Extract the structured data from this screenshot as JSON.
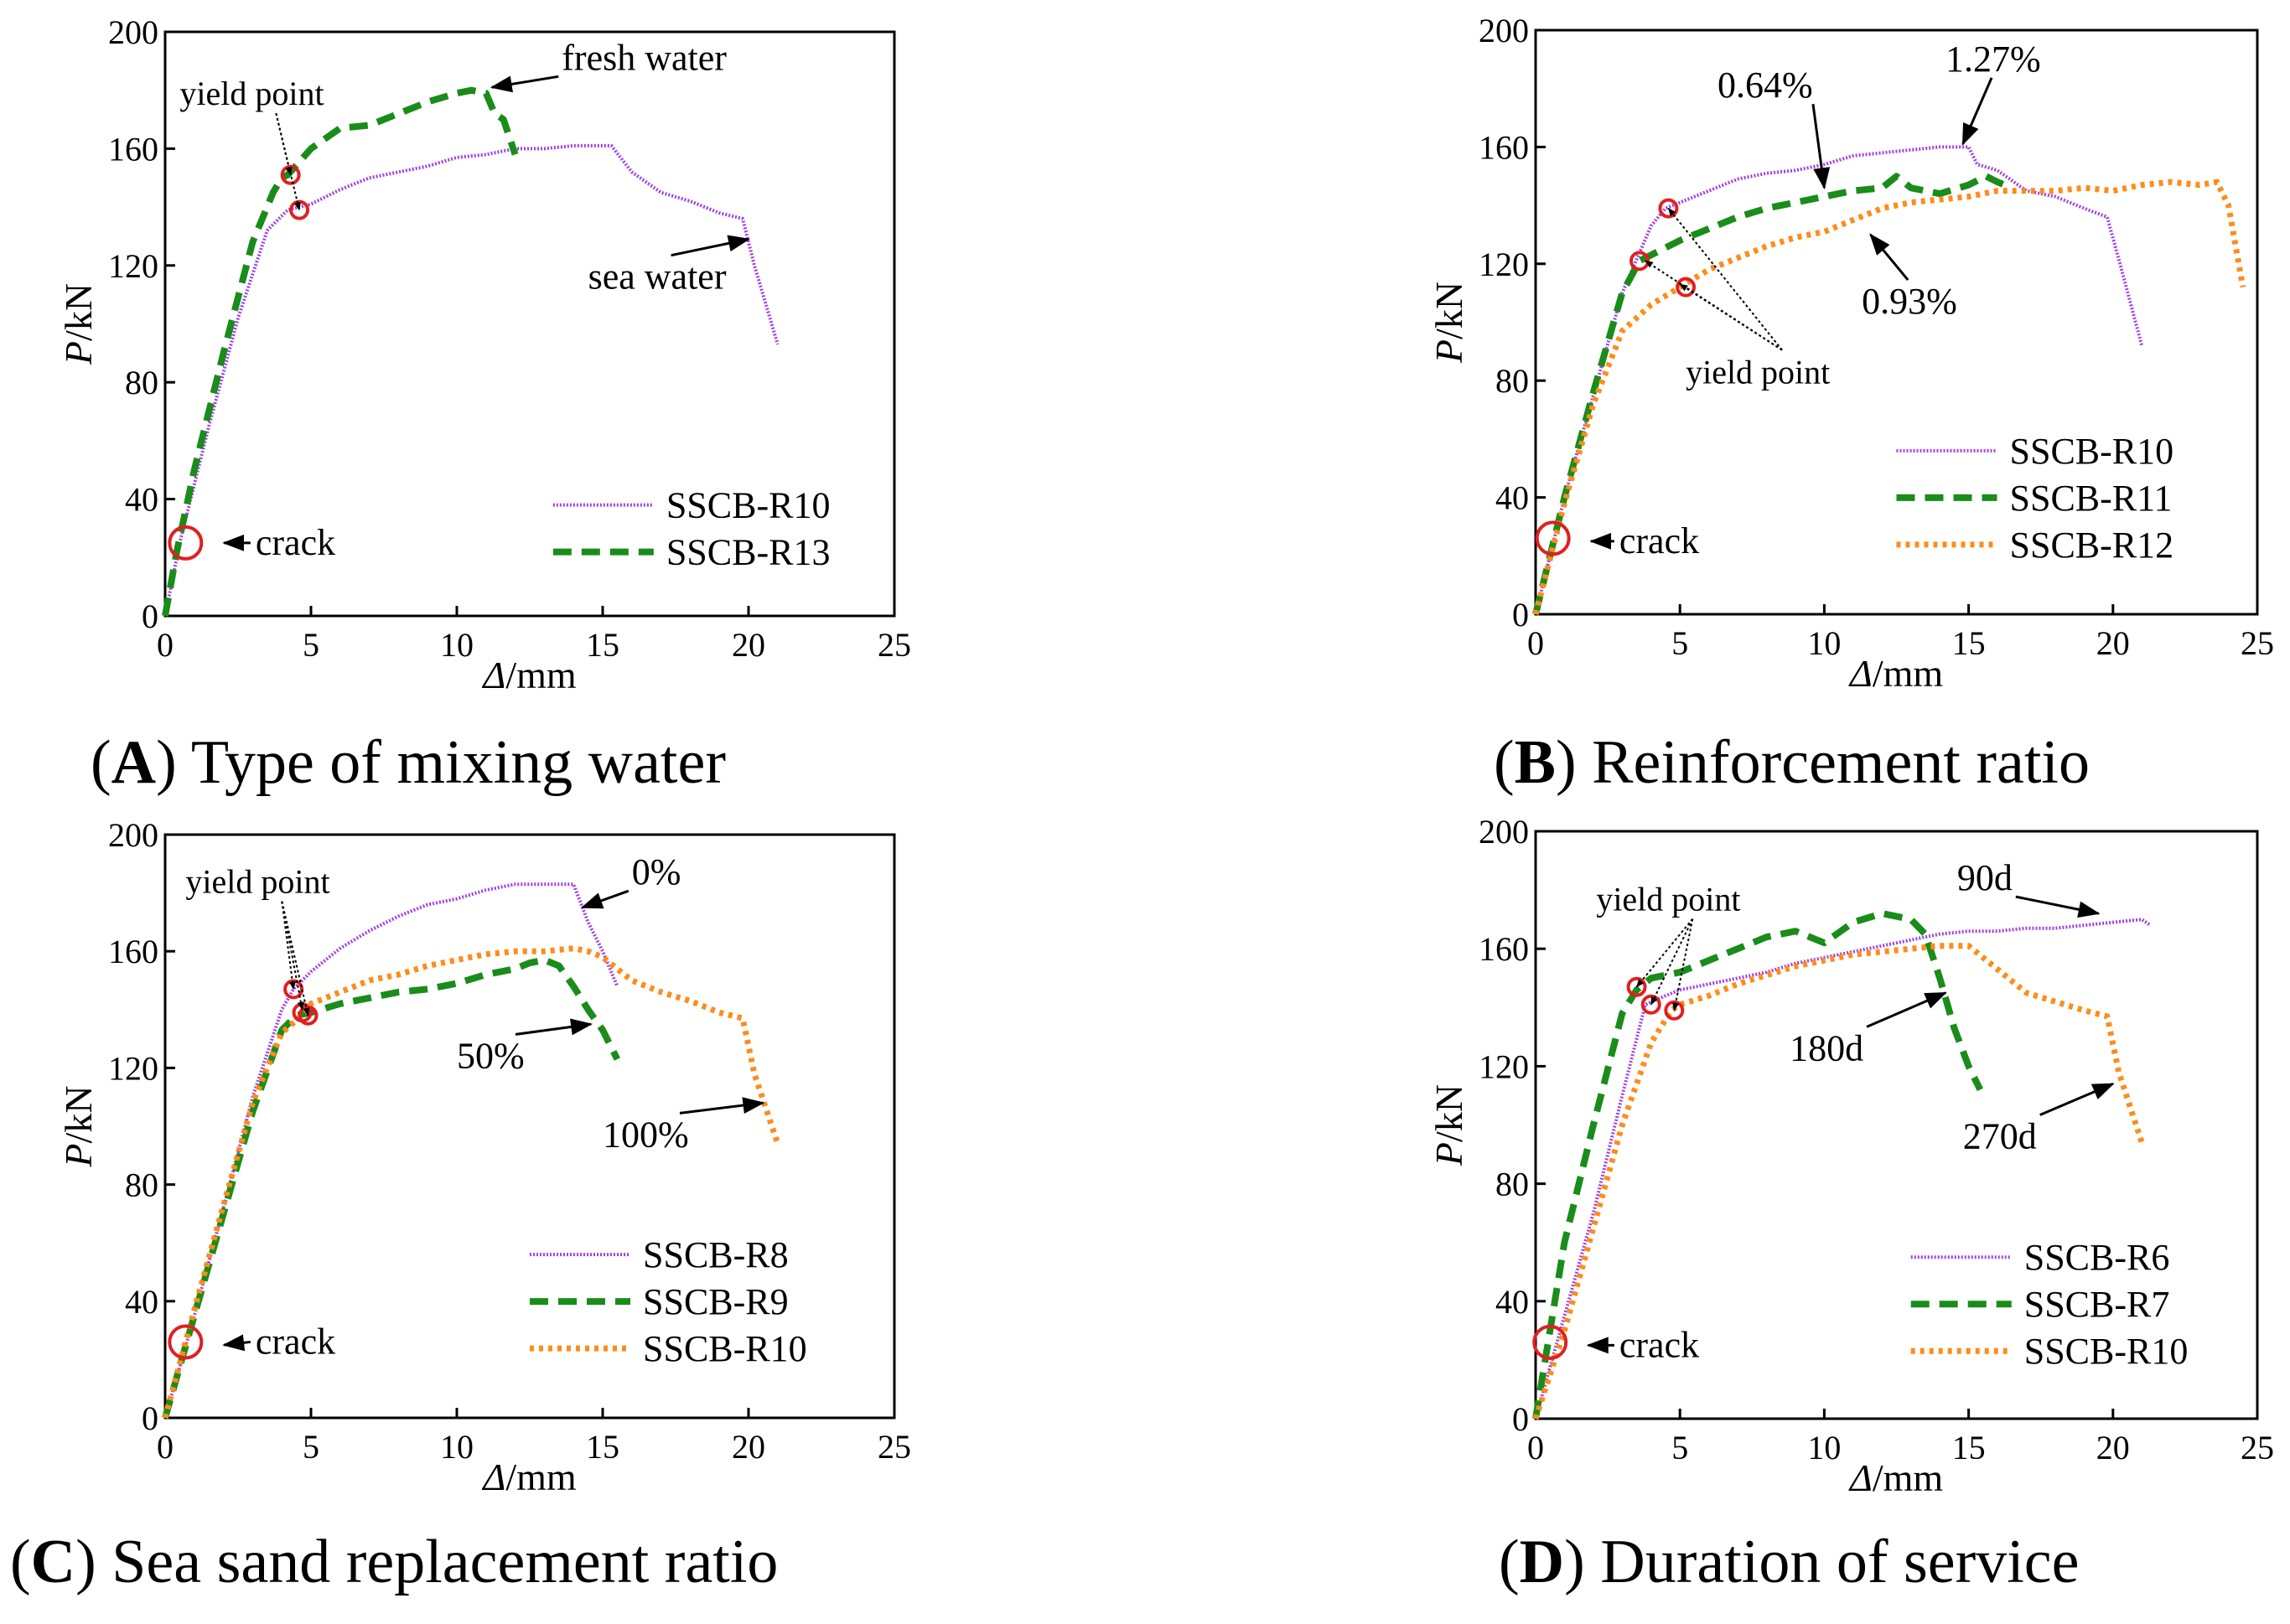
{
  "figure": {
    "panels": [
      {
        "id": "A",
        "letter": "A",
        "caption": "Type of mixing water"
      },
      {
        "id": "B",
        "letter": "B",
        "caption": "Reinforcement ratio"
      },
      {
        "id": "C",
        "letter": "C",
        "caption": "Sea sand replacement ratio"
      },
      {
        "id": "D",
        "letter": "D",
        "caption": "Duration of service"
      }
    ]
  },
  "colors": {
    "purple": "#a040e8",
    "green": "#1a8c1a",
    "orange": "#ff8c1a",
    "red": "#e02020",
    "axis": "#000000"
  },
  "chart_data": [
    {
      "panel": "A",
      "type": "line",
      "xlabel_symbol": "Δ",
      "xlabel_unit": "/mm",
      "ylabel_symbol": "P",
      "ylabel_unit": "/kN",
      "xlim": [
        0,
        25
      ],
      "ylim": [
        0,
        200
      ],
      "xticks": [
        0,
        5,
        10,
        15,
        20,
        25
      ],
      "yticks": [
        0,
        40,
        80,
        120,
        160,
        200
      ],
      "series": [
        {
          "name": "SSCB-R10",
          "style": "purple",
          "x": [
            0,
            0.5,
            1.5,
            2.5,
            3.5,
            4.2,
            5.0,
            6.0,
            7.0,
            8.0,
            9.0,
            10.0,
            11.0,
            12.0,
            13.0,
            14.0,
            15.3,
            16.0,
            17.0,
            18.0,
            19.0,
            19.8,
            20.2,
            21.0
          ],
          "y": [
            0,
            25,
            65,
            102,
            132,
            139,
            141,
            146,
            150,
            152,
            154,
            157,
            158,
            160,
            160,
            161,
            161,
            152,
            145,
            142,
            138,
            136,
            120,
            93
          ]
        },
        {
          "name": "SSCB-R13",
          "style": "green",
          "x": [
            0,
            0.4,
            1.0,
            2.0,
            3.0,
            3.7,
            4.0,
            4.2,
            5.0,
            6.0,
            7.0,
            8.0,
            9.0,
            10.0,
            10.5,
            11.0,
            11.3,
            11.6,
            12.0
          ],
          "y": [
            0,
            22,
            50,
            90,
            128,
            145,
            150,
            151,
            160,
            167,
            168,
            172,
            176,
            179,
            180,
            179,
            172,
            170,
            158
          ]
        }
      ],
      "markers": [
        {
          "type": "crack",
          "x": 0.7,
          "y": 25
        },
        {
          "type": "yield",
          "x": 4.3,
          "y": 151
        },
        {
          "type": "yield",
          "x": 4.6,
          "y": 139
        }
      ],
      "annotations": [
        {
          "text": "fresh water",
          "tx": 13.6,
          "ty": 187
        },
        {
          "text": "yield point",
          "tx": 0.5,
          "ty": 175
        },
        {
          "text": "sea water",
          "tx": 14.5,
          "ty": 112
        },
        {
          "text": "crack",
          "tx": 3.1,
          "ty": 21
        }
      ],
      "legend": [
        {
          "label": "SSCB-R10",
          "style": "purple"
        },
        {
          "label": "SSCB-R13",
          "style": "green"
        }
      ]
    },
    {
      "panel": "B",
      "type": "line",
      "xlabel_symbol": "Δ",
      "xlabel_unit": "/mm",
      "ylabel_symbol": "P",
      "ylabel_unit": "/kN",
      "xlim": [
        0,
        25
      ],
      "ylim": [
        0,
        200
      ],
      "xticks": [
        0,
        5,
        10,
        15,
        20,
        25
      ],
      "yticks": [
        0,
        40,
        80,
        120,
        160,
        200
      ],
      "series": [
        {
          "name": "SSCB-R10",
          "style": "purple",
          "x": [
            0,
            1.0,
            2.0,
            3.0,
            4.0,
            4.5,
            5.0,
            6.0,
            7.0,
            8.0,
            9.0,
            10.0,
            11.0,
            12.0,
            13.0,
            14.0,
            15.0,
            15.3,
            16.0,
            17.0,
            18.0,
            19.0,
            19.8,
            20.3,
            21.0
          ],
          "y": [
            0,
            40,
            75,
            110,
            133,
            139,
            141,
            145,
            149,
            151,
            152,
            154,
            157,
            158,
            159,
            160,
            160,
            154,
            152,
            145,
            143,
            139,
            136,
            118,
            92
          ]
        },
        {
          "name": "SSCB-R11",
          "style": "green",
          "x": [
            0,
            1.0,
            2.0,
            3.0,
            3.6,
            4.0,
            5.0,
            6.0,
            7.0,
            8.0,
            9.0,
            10.0,
            11.0,
            12.0,
            12.5,
            13.0,
            14.0,
            15.0,
            15.6,
            16.0,
            16.5
          ],
          "y": [
            0,
            40,
            76,
            110,
            121,
            123,
            128,
            132,
            136,
            139,
            141,
            143,
            145,
            146,
            150,
            146,
            144,
            147,
            150,
            148,
            146
          ]
        },
        {
          "name": "SSCB-R12",
          "style": "orange",
          "x": [
            0,
            1.0,
            2.0,
            3.0,
            4.0,
            5.0,
            6.0,
            7.0,
            8.0,
            9.0,
            10.0,
            11.0,
            12.0,
            13.0,
            14.0,
            15.0,
            16.0,
            17.0,
            18.0,
            19.0,
            20.0,
            21.0,
            22.0,
            23.0,
            23.6,
            24.0,
            24.5
          ],
          "y": [
            0,
            38,
            72,
            97,
            106,
            112,
            118,
            122,
            126,
            129,
            131,
            135,
            139,
            141,
            142,
            143,
            145,
            145,
            145,
            146,
            145,
            147,
            148,
            147,
            148,
            140,
            112
          ]
        }
      ],
      "markers": [
        {
          "type": "crack",
          "x": 0.6,
          "y": 26
        },
        {
          "type": "yield",
          "x": 3.6,
          "y": 121
        },
        {
          "type": "yield",
          "x": 4.6,
          "y": 139
        },
        {
          "type": "yield",
          "x": 5.2,
          "y": 112
        }
      ],
      "annotations": [
        {
          "text": "1.27%",
          "tx": 14.2,
          "ty": 186
        },
        {
          "text": "0.64%",
          "tx": 6.3,
          "ty": 177
        },
        {
          "text": "0.93%",
          "tx": 11.3,
          "ty": 103
        },
        {
          "text": "yield point",
          "tx": 5.2,
          "ty": 79
        },
        {
          "text": "crack",
          "tx": 2.9,
          "ty": 21
        }
      ],
      "legend": [
        {
          "label": "SSCB-R10",
          "style": "purple"
        },
        {
          "label": "SSCB-R11",
          "style": "green"
        },
        {
          "label": "SSCB-R12",
          "style": "orange"
        }
      ]
    },
    {
      "panel": "C",
      "type": "line",
      "xlabel_symbol": "Δ",
      "xlabel_unit": "/mm",
      "ylabel_symbol": "P",
      "ylabel_unit": "/kN",
      "xlim": [
        0,
        25
      ],
      "ylim": [
        0,
        200
      ],
      "xticks": [
        0,
        5,
        10,
        15,
        20,
        25
      ],
      "yticks": [
        0,
        40,
        80,
        120,
        160,
        200
      ],
      "series": [
        {
          "name": "SSCB-R8",
          "style": "purple",
          "x": [
            0,
            1.0,
            2.0,
            3.0,
            4.0,
            4.4,
            5.0,
            6.0,
            7.0,
            8.0,
            9.0,
            10.0,
            11.0,
            12.0,
            13.0,
            14.0,
            14.5,
            15.0,
            15.5
          ],
          "y": [
            0,
            35,
            72,
            110,
            140,
            147,
            153,
            161,
            167,
            172,
            176,
            178,
            181,
            183,
            183,
            183,
            170,
            160,
            148
          ]
        },
        {
          "name": "SSCB-R9",
          "style": "green",
          "x": [
            0,
            1.0,
            2.0,
            3.0,
            4.0,
            4.5,
            5.0,
            6.0,
            7.0,
            8.0,
            9.0,
            10.0,
            11.0,
            12.0,
            12.5,
            13.0,
            13.5,
            14.0,
            14.5,
            15.0,
            15.5
          ],
          "y": [
            0,
            35,
            70,
            105,
            133,
            138,
            139,
            142,
            144,
            146,
            147,
            149,
            152,
            154,
            156,
            157,
            155,
            148,
            140,
            133,
            123
          ]
        },
        {
          "name": "SSCB-R10",
          "style": "orange",
          "x": [
            0,
            1.0,
            2.0,
            3.0,
            4.0,
            4.8,
            5.0,
            6.0,
            7.0,
            8.0,
            9.0,
            10.0,
            11.0,
            12.0,
            13.0,
            14.0,
            14.5,
            15.0,
            16.0,
            17.0,
            18.0,
            19.0,
            19.8,
            20.2,
            21.0
          ],
          "y": [
            0,
            37,
            73,
            108,
            132,
            139,
            142,
            146,
            150,
            152,
            155,
            157,
            159,
            160,
            160,
            161,
            160,
            158,
            150,
            146,
            143,
            139,
            137,
            118,
            94
          ]
        }
      ],
      "markers": [
        {
          "type": "crack",
          "x": 0.7,
          "y": 26
        },
        {
          "type": "yield",
          "x": 4.4,
          "y": 147
        },
        {
          "type": "yield",
          "x": 4.7,
          "y": 139
        },
        {
          "type": "yield",
          "x": 4.9,
          "y": 138
        }
      ],
      "annotations": [
        {
          "text": "0%",
          "tx": 16.0,
          "ty": 183
        },
        {
          "text": "yield point",
          "tx": 0.7,
          "ty": 180
        },
        {
          "text": "50%",
          "tx": 10.0,
          "ty": 120
        },
        {
          "text": "100%",
          "tx": 15.0,
          "ty": 93
        },
        {
          "text": "crack",
          "tx": 3.1,
          "ty": 22
        }
      ],
      "legend": [
        {
          "label": "SSCB-R8",
          "style": "purple"
        },
        {
          "label": "SSCB-R9",
          "style": "green"
        },
        {
          "label": "SSCB-R10",
          "style": "orange"
        }
      ]
    },
    {
      "panel": "D",
      "type": "line",
      "xlabel_symbol": "Δ",
      "xlabel_unit": "/mm",
      "ylabel_symbol": "P",
      "ylabel_unit": "/kN",
      "xlim": [
        0,
        25
      ],
      "ylim": [
        0,
        200
      ],
      "xticks": [
        0,
        5,
        10,
        15,
        20,
        25
      ],
      "yticks": [
        0,
        40,
        80,
        120,
        160,
        200
      ],
      "series": [
        {
          "name": "SSCB-R6",
          "style": "purple",
          "x": [
            0,
            1.0,
            2.0,
            3.0,
            3.8,
            4.5,
            5.0,
            6.0,
            7.0,
            8.0,
            9.0,
            10.0,
            11.0,
            12.0,
            13.0,
            14.0,
            15.0,
            16.0,
            17.0,
            18.0,
            19.0,
            20.0,
            21.0,
            21.3
          ],
          "y": [
            0,
            35,
            70,
            110,
            141,
            144,
            146,
            148,
            150,
            152,
            155,
            157,
            159,
            161,
            163,
            165,
            166,
            166,
            167,
            167,
            168,
            169,
            170,
            168
          ]
        },
        {
          "name": "SSCB-R7",
          "style": "green",
          "x": [
            0,
            1.0,
            2.0,
            3.0,
            3.5,
            4.0,
            5.0,
            6.0,
            7.0,
            8.0,
            9.0,
            10.0,
            11.0,
            12.0,
            12.5,
            13.0,
            13.5,
            14.0,
            14.5,
            15.0,
            15.4
          ],
          "y": [
            0,
            60,
            100,
            138,
            146,
            150,
            152,
            156,
            160,
            164,
            166,
            162,
            169,
            172,
            171,
            170,
            165,
            150,
            133,
            120,
            112
          ]
        },
        {
          "name": "SSCB-R10",
          "style": "orange",
          "x": [
            0,
            1.0,
            2.0,
            3.0,
            4.0,
            4.7,
            5.0,
            6.0,
            7.0,
            8.0,
            9.0,
            10.0,
            11.0,
            12.0,
            13.0,
            14.0,
            15.0,
            16.0,
            17.0,
            18.0,
            19.0,
            19.8,
            20.2,
            21.0
          ],
          "y": [
            0,
            30,
            65,
            100,
            128,
            139,
            141,
            144,
            148,
            151,
            154,
            156,
            158,
            159,
            160,
            161,
            161,
            153,
            145,
            142,
            139,
            137,
            118,
            94
          ]
        }
      ],
      "markers": [
        {
          "type": "crack",
          "x": 0.5,
          "y": 26
        },
        {
          "type": "yield",
          "x": 3.5,
          "y": 147
        },
        {
          "type": "yield",
          "x": 4.0,
          "y": 141
        },
        {
          "type": "yield",
          "x": 4.8,
          "y": 139
        }
      ],
      "annotations": [
        {
          "text": "90d",
          "tx": 14.6,
          "ty": 180
        },
        {
          "text": "yield point",
          "tx": 2.1,
          "ty": 173
        },
        {
          "text": "180d",
          "tx": 8.8,
          "ty": 122
        },
        {
          "text": "270d",
          "tx": 14.8,
          "ty": 92
        },
        {
          "text": "crack",
          "tx": 2.9,
          "ty": 21
        }
      ],
      "legend": [
        {
          "label": "SSCB-R6",
          "style": "purple"
        },
        {
          "label": "SSCB-R7",
          "style": "green"
        },
        {
          "label": "SSCB-R10",
          "style": "orange"
        }
      ]
    }
  ]
}
